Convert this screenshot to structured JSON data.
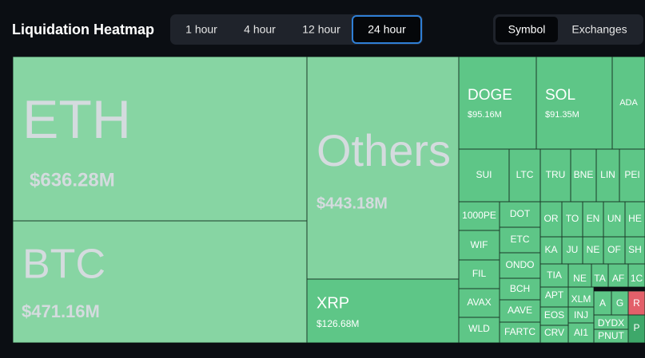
{
  "header": {
    "title": "Liquidation Heatmap",
    "timeframes": [
      "1 hour",
      "4 hour",
      "12 hour",
      "24 hour"
    ],
    "views": [
      "Symbol",
      "Exchanges"
    ]
  },
  "tiles": [
    {
      "label": "ETH",
      "value": "$636.28M"
    },
    {
      "label": "BTC",
      "value": "$471.16M"
    },
    {
      "label": "Others",
      "value": "$443.18M"
    },
    {
      "label": "XRP",
      "value": "$126.68M"
    },
    {
      "label": "DOGE",
      "value": "$95.16M"
    },
    {
      "label": "SOL",
      "value": "$91.35M"
    },
    {
      "label": "ADA"
    },
    {
      "label": "SUI"
    },
    {
      "label": "LTC"
    },
    {
      "label": "TRU"
    },
    {
      "label": "BNE"
    },
    {
      "label": "LIN"
    },
    {
      "label": "PEI"
    },
    {
      "label": "1000PE"
    },
    {
      "label": "WIF"
    },
    {
      "label": "FIL"
    },
    {
      "label": "AVAX"
    },
    {
      "label": "WLD"
    },
    {
      "label": "DOT"
    },
    {
      "label": "ETC"
    },
    {
      "label": "ONDO"
    },
    {
      "label": "BCH"
    },
    {
      "label": "AAVE"
    },
    {
      "label": "FARTC"
    },
    {
      "label": "OR"
    },
    {
      "label": "TO"
    },
    {
      "label": "EN"
    },
    {
      "label": "UN"
    },
    {
      "label": "HE"
    },
    {
      "label": "KA"
    },
    {
      "label": "JU"
    },
    {
      "label": "NE"
    },
    {
      "label": "OF"
    },
    {
      "label": "SH"
    },
    {
      "label": "TIA"
    },
    {
      "label": "NE"
    },
    {
      "label": "TA"
    },
    {
      "label": "AF"
    },
    {
      "label": "1C"
    },
    {
      "label": "APT"
    },
    {
      "label": "EOS"
    },
    {
      "label": "CRV"
    },
    {
      "label": "XLM"
    },
    {
      "label": "INJ"
    },
    {
      "label": "AI1"
    },
    {
      "label": "A"
    },
    {
      "label": "G"
    },
    {
      "label": "R"
    },
    {
      "label": "DYDX"
    },
    {
      "label": "PNUT"
    },
    {
      "label": "P"
    }
  ]
}
